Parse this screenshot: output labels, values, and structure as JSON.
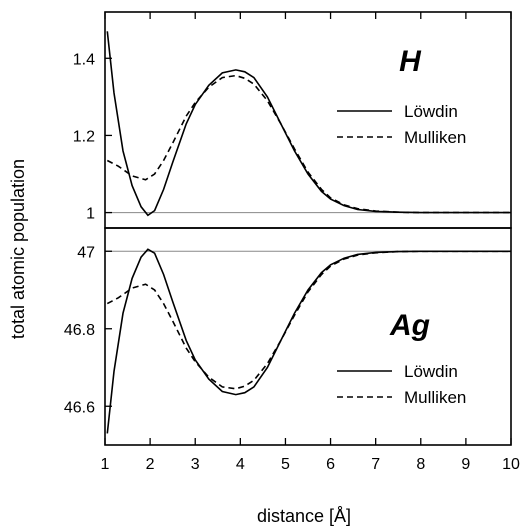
{
  "chart_data": {
    "type": "line",
    "xlabel": "distance [Å]",
    "ylabel": "total atomic population",
    "xlim": [
      1,
      10
    ],
    "x_ticks": [
      1,
      2,
      3,
      4,
      5,
      6,
      7,
      8,
      9,
      10
    ],
    "colors": {
      "lines": "#000000",
      "reference": "#888888",
      "frame": "#000000"
    },
    "panels": [
      {
        "title": "H",
        "ylim": [
          0.96,
          1.52
        ],
        "y_ticks": [
          1,
          1.2,
          1.4
        ],
        "y_tick_labels": [
          "1",
          "1.2",
          "1.4"
        ],
        "reference_line": 1,
        "legend_position": "right",
        "series": [
          {
            "name": "Löwdin",
            "style": "solid",
            "x": [
              1.05,
              1.2,
              1.4,
              1.6,
              1.8,
              1.95,
              2.1,
              2.3,
              2.5,
              2.8,
              3.0,
              3.3,
              3.6,
              3.9,
              4.1,
              4.3,
              4.6,
              4.9,
              5.2,
              5.5,
              5.8,
              6.0,
              6.3,
              6.6,
              7.0,
              7.5,
              8.0,
              9.0,
              10.0
            ],
            "y": [
              1.47,
              1.31,
              1.16,
              1.07,
              1.015,
              0.993,
              1.005,
              1.06,
              1.13,
              1.23,
              1.28,
              1.33,
              1.362,
              1.37,
              1.365,
              1.35,
              1.3,
              1.23,
              1.16,
              1.1,
              1.055,
              1.035,
              1.018,
              1.008,
              1.003,
              1.001,
              1.0,
              1.0,
              1.0
            ]
          },
          {
            "name": "Mulliken",
            "style": "dashed",
            "x": [
              1.05,
              1.3,
              1.6,
              1.9,
              2.1,
              2.3,
              2.5,
              2.8,
              3.0,
              3.3,
              3.6,
              3.9,
              4.1,
              4.3,
              4.6,
              4.9,
              5.2,
              5.5,
              5.8,
              6.0,
              6.3,
              6.6,
              7.0,
              7.5,
              8.0,
              9.0,
              10.0
            ],
            "y": [
              1.135,
              1.12,
              1.095,
              1.085,
              1.1,
              1.135,
              1.18,
              1.25,
              1.285,
              1.325,
              1.35,
              1.355,
              1.348,
              1.333,
              1.29,
              1.23,
              1.165,
              1.105,
              1.06,
              1.038,
              1.02,
              1.01,
              1.004,
              1.001,
              1.0,
              1.0,
              1.0
            ]
          }
        ]
      },
      {
        "title": "Ag",
        "ylim": [
          46.5,
          47.06
        ],
        "y_ticks": [
          46.6,
          46.8,
          47
        ],
        "y_tick_labels": [
          "46.6",
          "46.8",
          "47"
        ],
        "reference_line": 47,
        "legend_position": "right",
        "series": [
          {
            "name": "Löwdin",
            "style": "solid",
            "x": [
              1.05,
              1.2,
              1.4,
              1.6,
              1.8,
              1.95,
              2.1,
              2.3,
              2.5,
              2.8,
              3.0,
              3.3,
              3.6,
              3.9,
              4.1,
              4.3,
              4.6,
              4.9,
              5.2,
              5.5,
              5.8,
              6.0,
              6.3,
              6.6,
              7.0,
              7.5,
              8.0,
              9.0,
              10.0
            ],
            "y": [
              46.53,
              46.69,
              46.84,
              46.93,
              46.985,
              47.005,
              46.995,
              46.94,
              46.87,
              46.77,
              46.72,
              46.67,
              46.638,
              46.63,
              46.635,
              46.65,
              46.7,
              46.77,
              46.84,
              46.9,
              46.945,
              46.965,
              46.982,
              46.992,
              46.997,
              46.999,
              47.0,
              47.0,
              47.0
            ]
          },
          {
            "name": "Mulliken",
            "style": "dashed",
            "x": [
              1.05,
              1.3,
              1.6,
              1.9,
              2.1,
              2.3,
              2.5,
              2.8,
              3.0,
              3.3,
              3.6,
              3.9,
              4.1,
              4.3,
              4.6,
              4.9,
              5.2,
              5.5,
              5.8,
              6.0,
              6.3,
              6.6,
              7.0,
              7.5,
              8.0,
              9.0,
              10.0
            ],
            "y": [
              46.865,
              46.88,
              46.905,
              46.915,
              46.9,
              46.865,
              46.82,
              46.75,
              46.715,
              46.675,
              46.65,
              46.645,
              46.652,
              46.667,
              46.71,
              46.77,
              46.835,
              46.895,
              46.94,
              46.962,
              46.98,
              46.99,
              46.996,
              46.999,
              47.0,
              47.0,
              47.0
            ]
          }
        ]
      }
    ]
  }
}
